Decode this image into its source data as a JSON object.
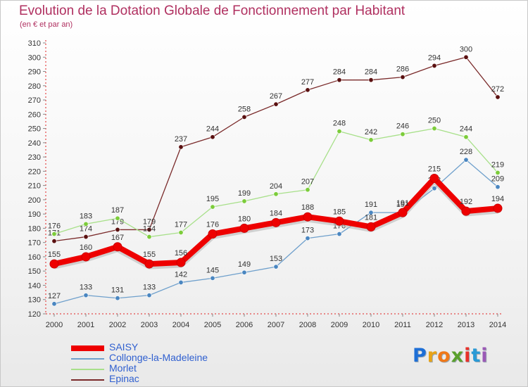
{
  "title": "Evolution de la Dotation Globale de Fonctionnement par Habitant",
  "subtitle": "(en € et par an)",
  "logo": {
    "text": "Proxiti",
    "letter_colors": [
      "#1e6fd6",
      "#e8a317",
      "#f07818",
      "#5aa02c",
      "#e8312a",
      "#2a9ad6",
      "#9b59b6"
    ]
  },
  "chart_data": {
    "type": "line",
    "title": "Evolution de la Dotation Globale de Fonctionnement par Habitant",
    "subtitle": "(en € et par an)",
    "xlabel": "",
    "ylabel": "",
    "x": [
      "2000",
      "2001",
      "2002",
      "2003",
      "2004",
      "2005",
      "2006",
      "2007",
      "2008",
      "2009",
      "2010",
      "2011",
      "2012",
      "2013",
      "2014"
    ],
    "ylim": [
      120,
      310
    ],
    "yticks": [
      120,
      130,
      140,
      150,
      160,
      170,
      180,
      190,
      200,
      210,
      220,
      230,
      240,
      250,
      260,
      270,
      280,
      290,
      300,
      310
    ],
    "grid": false,
    "legend_position": "bottom-left",
    "series": [
      {
        "name": "Epinac",
        "color": "#7a2a2a",
        "marker_color": "#5a1010",
        "emphasis": false,
        "values": [
          171,
          174,
          179,
          179,
          237,
          244,
          258,
          267,
          277,
          284,
          284,
          286,
          294,
          300,
          272
        ]
      },
      {
        "name": "Morlet",
        "color": "#a8e08a",
        "marker_color": "#7ccc3a",
        "emphasis": false,
        "values": [
          176,
          183,
          187,
          174,
          177,
          195,
          199,
          204,
          207,
          248,
          242,
          246,
          250,
          244,
          219
        ]
      },
      {
        "name": "Collonge-la-Madeleine",
        "color": "#6fa0cc",
        "marker_color": "#4a86c0",
        "emphasis": false,
        "values": [
          127,
          133,
          131,
          133,
          142,
          145,
          149,
          153,
          173,
          176,
          191,
          191,
          208,
          228,
          209
        ]
      },
      {
        "name": "SAISY",
        "color": "#ee0000",
        "marker_color": "#ee0000",
        "emphasis": true,
        "values": [
          155,
          160,
          167,
          155,
          156,
          176,
          180,
          184,
          188,
          185,
          181,
          191,
          215,
          192,
          194
        ]
      }
    ],
    "data_labels": {
      "Epinac": [
        "171",
        "174",
        "179",
        "179",
        "237",
        "244",
        "258",
        "267",
        "277",
        "284",
        "284",
        "286",
        "294",
        "300",
        "272"
      ],
      "Morlet": [
        "176",
        "183",
        "187",
        "174",
        "177",
        "195",
        "199",
        "204",
        "207",
        "248",
        "242",
        "246",
        "250",
        "244",
        "219"
      ],
      "Collonge-la-Madeleine": [
        "127",
        "133",
        "131",
        "133",
        "142",
        "145",
        "149",
        "153",
        "173",
        "176",
        "191",
        "191",
        "208",
        "228",
        "209"
      ],
      "SAISY": [
        "155",
        "160",
        "167",
        "155",
        "156",
        "176",
        "180",
        "184",
        "188",
        "185",
        "181",
        "191",
        "215",
        "192",
        "194"
      ]
    },
    "legend_order": [
      "SAISY",
      "Collonge-la-Madeleine",
      "Morlet",
      "Epinac"
    ]
  }
}
